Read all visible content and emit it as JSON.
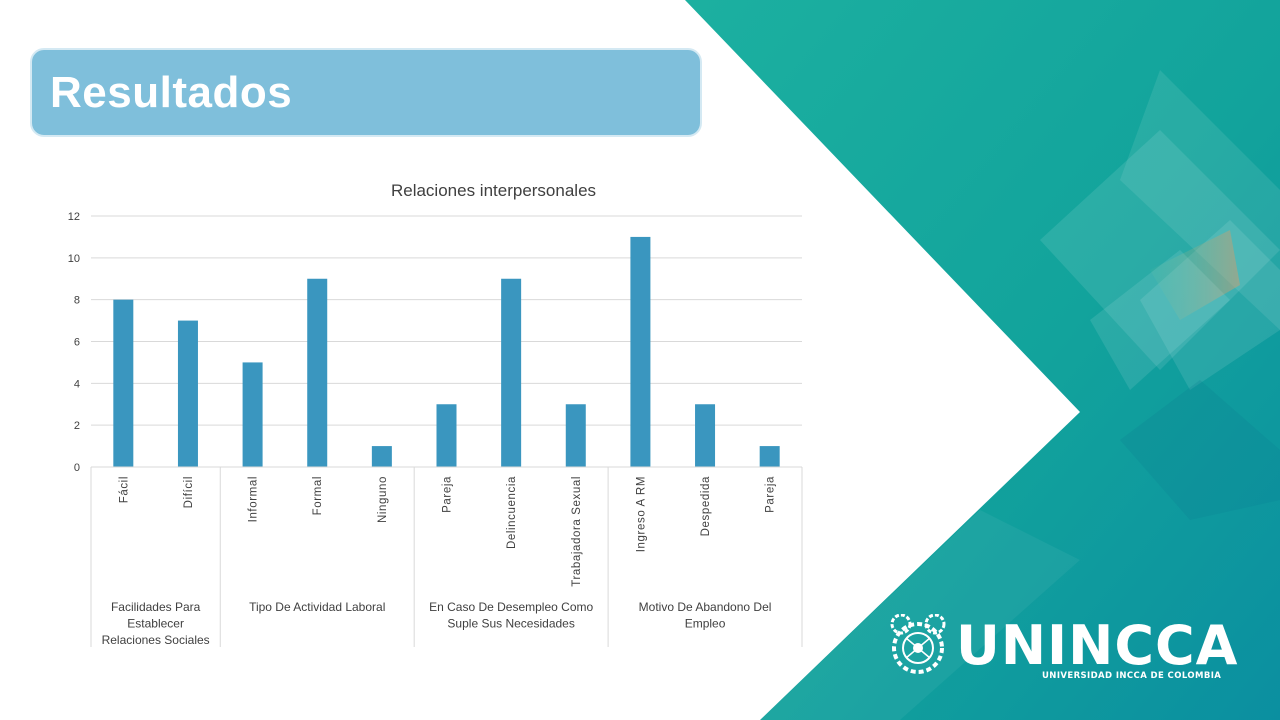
{
  "slide": {
    "title": "Resultados"
  },
  "colors": {
    "title_bg": "#7fbfdb",
    "bar": "#3a96bf",
    "teal_main": "#12a59e",
    "teal_dark": "#0a8f9c",
    "accent_orange": "#d89a6a"
  },
  "logo": {
    "name": "UNINCCA",
    "subtitle": "UNIVERSIDAD INCCA DE COLOMBIA",
    "icon": "gear-emblem-icon"
  },
  "chart_data": {
    "type": "bar",
    "title": "Relaciones interpersonales",
    "xlabel": "",
    "ylabel": "",
    "ylim": [
      0,
      12
    ],
    "yticks": [
      0,
      2,
      4,
      6,
      8,
      10,
      12
    ],
    "grid": true,
    "legend": "none",
    "groups": [
      {
        "label": [
          "Facilidades Para",
          "Establecer",
          "Relaciones Sociales"
        ],
        "categories": [
          "Fácil",
          "Difícil"
        ],
        "values": [
          8,
          7
        ]
      },
      {
        "label": [
          "Tipo De Actividad Laboral"
        ],
        "categories": [
          "Informal",
          "Formal",
          "Ninguno"
        ],
        "values": [
          5,
          9,
          1
        ]
      },
      {
        "label": [
          "En Caso De Desempleo Como",
          "Suple Sus Necesidades"
        ],
        "categories": [
          "Pareja",
          "Delincuencia",
          "Trabajadora Sexual"
        ],
        "values": [
          3,
          9,
          3
        ]
      },
      {
        "label": [
          "Motivo De Abandono Del",
          "Empleo"
        ],
        "categories": [
          "Ingreso A RM",
          "Despedida",
          "Pareja"
        ],
        "values": [
          11,
          3,
          1
        ]
      }
    ]
  }
}
